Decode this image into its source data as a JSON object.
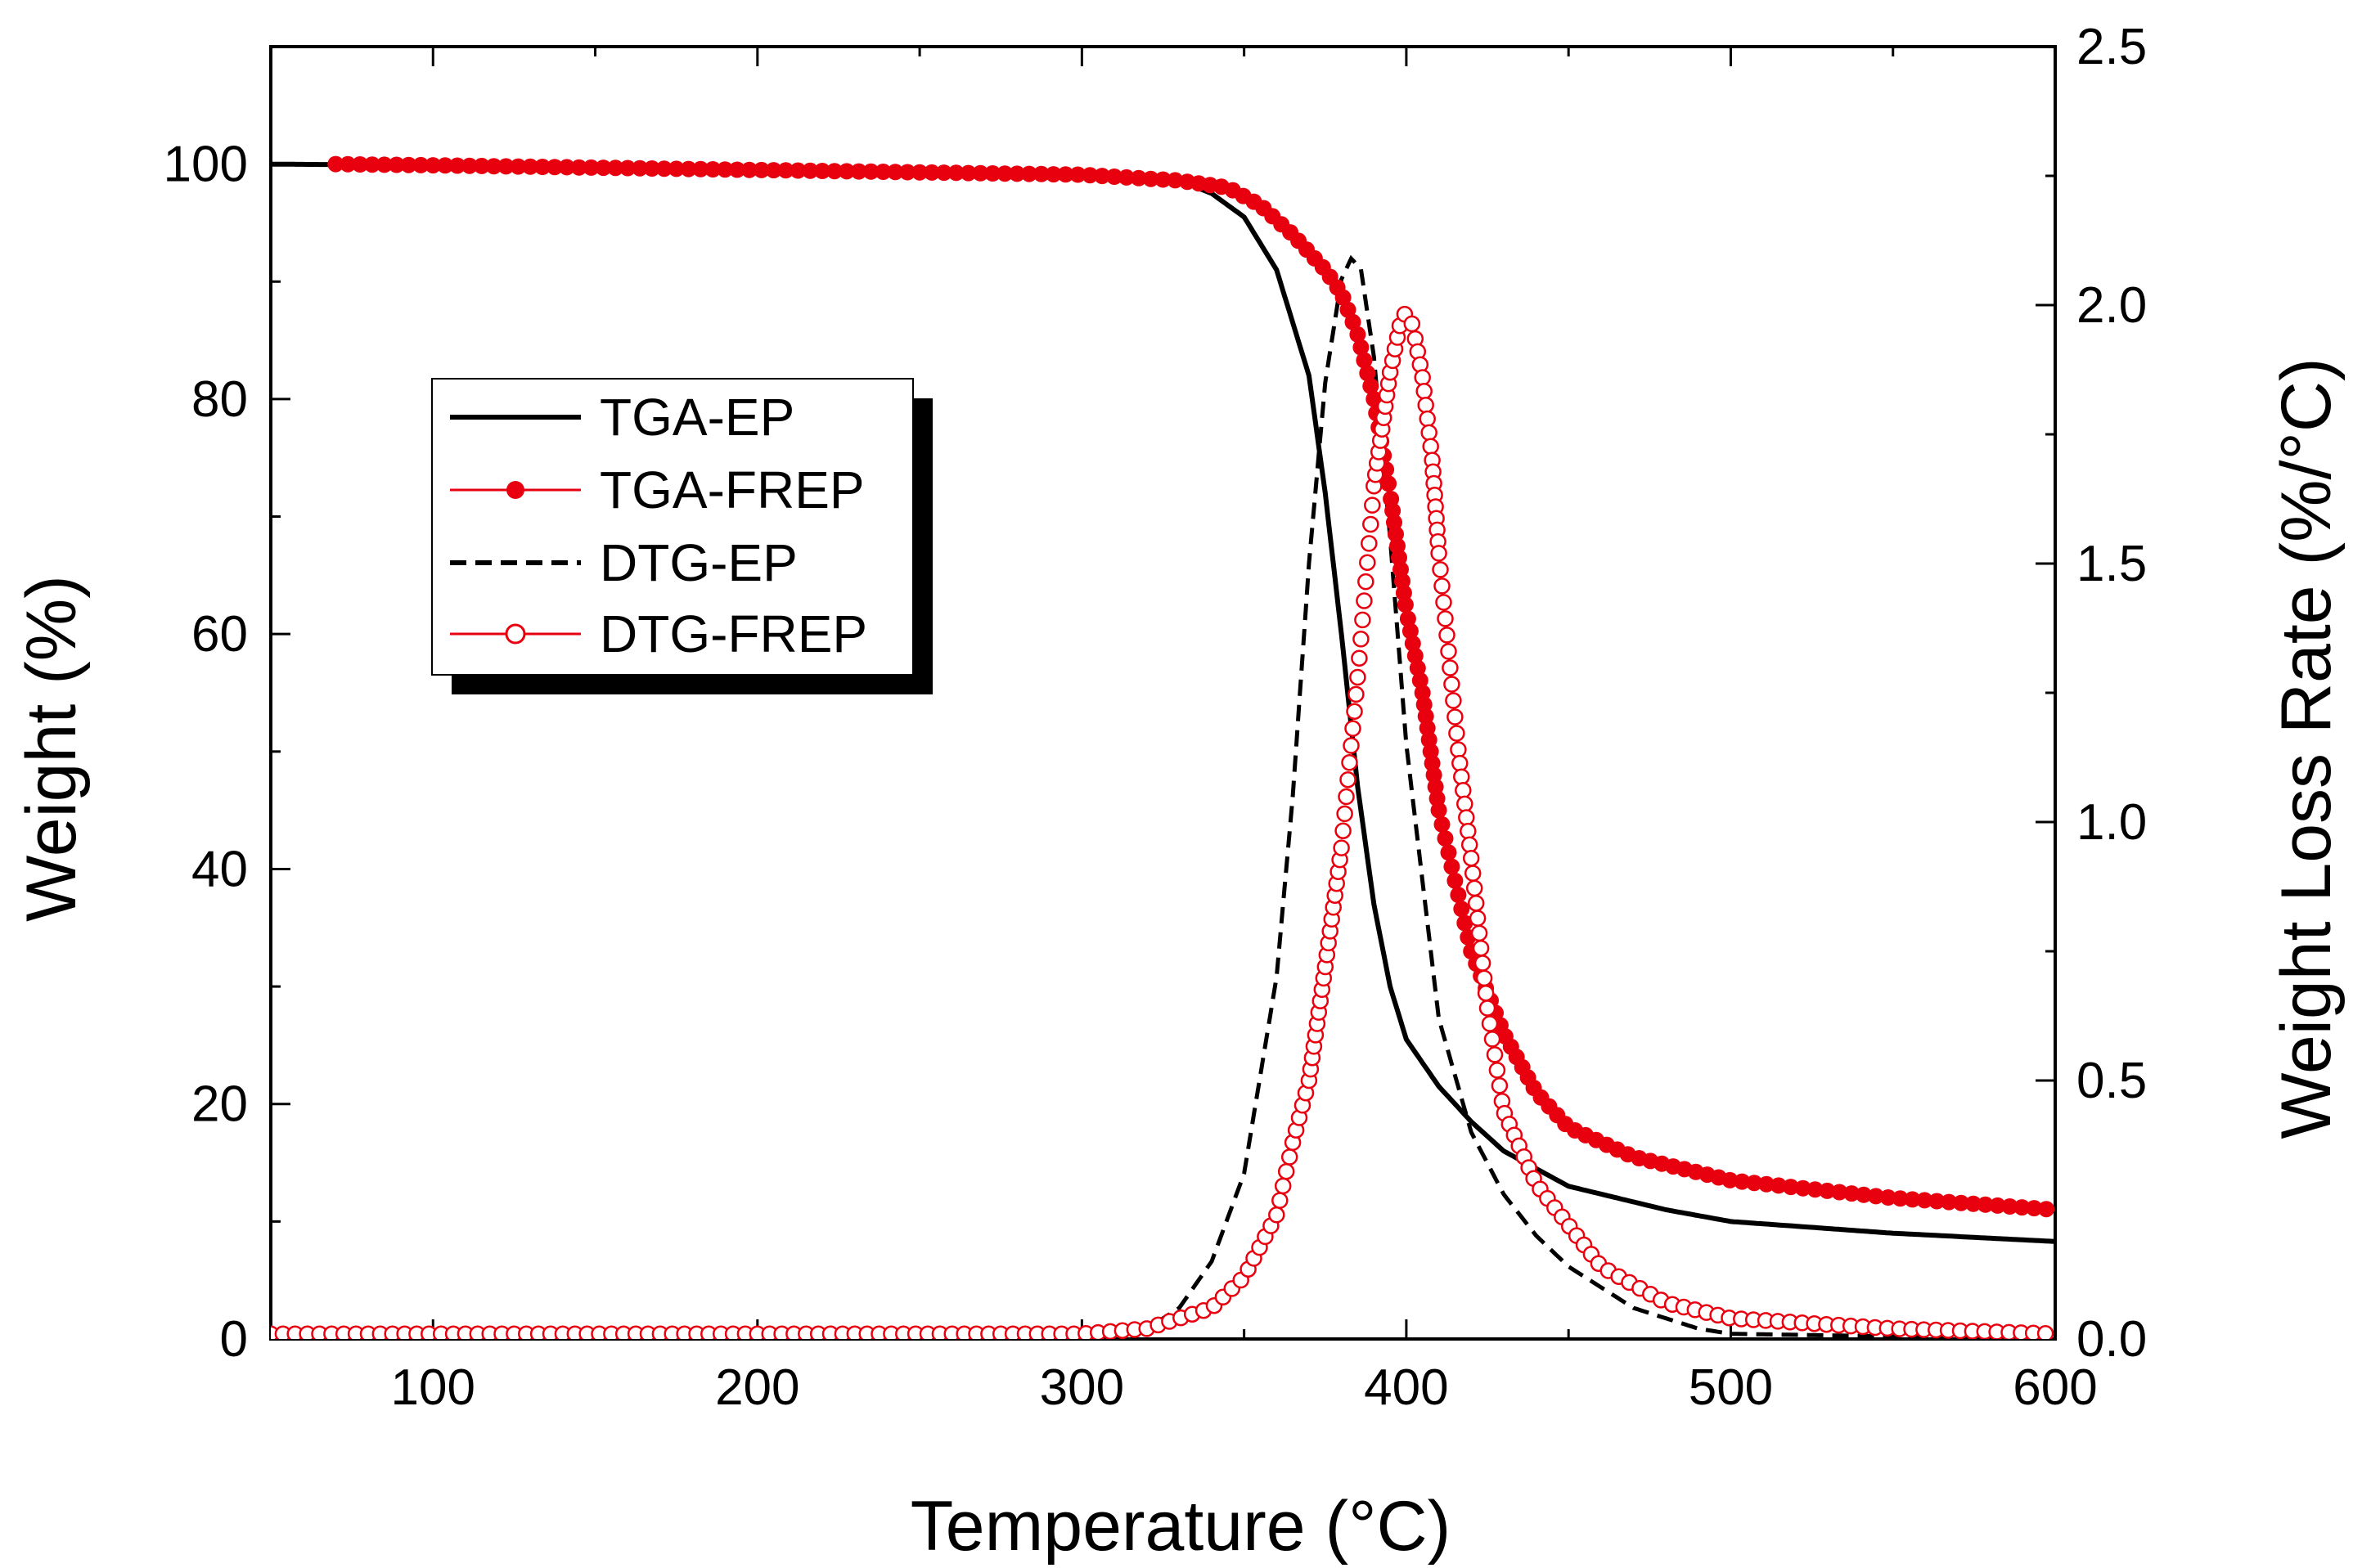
{
  "chart_data": {
    "type": "line",
    "title": "",
    "xlabel": "Temperature (°C)",
    "ylabel_left": "Weight (%)",
    "ylabel_right": "Weight Loss Rate (%/°C)",
    "xlim": [
      50,
      600
    ],
    "ylim_left": [
      0,
      110
    ],
    "ylim_right": [
      0,
      2.5
    ],
    "x_ticks": [
      "100",
      "200",
      "300",
      "400",
      "500",
      "600"
    ],
    "y_ticks_left": [
      "0",
      "20",
      "40",
      "60",
      "80",
      "100"
    ],
    "y_ticks_right": [
      "0.0",
      "0.5",
      "1.0",
      "1.5",
      "2.0",
      "2.5"
    ],
    "legend_position": "upper-left",
    "colors": {
      "ep": "#000000",
      "frep": "#e8000f"
    },
    "series": [
      {
        "name": "TGA-EP",
        "axis": "left",
        "style": "solid",
        "x": [
          50,
          100,
          200,
          300,
          330,
          340,
          350,
          360,
          370,
          375,
          380,
          385,
          390,
          395,
          400,
          410,
          420,
          430,
          450,
          480,
          500,
          550,
          600
        ],
        "y": [
          100,
          99.9,
          99.6,
          99.1,
          98.6,
          97.5,
          95.5,
          91,
          82,
          72,
          60,
          47,
          37,
          30,
          25.5,
          21.5,
          18.5,
          16,
          13,
          11,
          10,
          9,
          8.3
        ]
      },
      {
        "name": "TGA-FREP",
        "axis": "left",
        "style": "filled-markers",
        "x": [
          70,
          100,
          200,
          300,
          330,
          345,
          355,
          365,
          375,
          380,
          385,
          390,
          395,
          400,
          405,
          410,
          420,
          430,
          440,
          450,
          470,
          500,
          550,
          600
        ],
        "y": [
          100,
          99.9,
          99.5,
          99.1,
          98.6,
          98,
          96.5,
          94,
          91,
          89,
          85.5,
          80,
          72,
          62,
          55,
          45,
          33,
          26,
          21,
          18,
          15.5,
          13.5,
          12,
          11
        ]
      },
      {
        "name": "DTG-EP",
        "axis": "right",
        "style": "dashed",
        "x": [
          50,
          300,
          320,
          330,
          340,
          350,
          360,
          365,
          370,
          375,
          380,
          383,
          386,
          390,
          395,
          400,
          410,
          420,
          430,
          440,
          450,
          470,
          490,
          500,
          600
        ],
        "y": [
          0,
          0,
          0.02,
          0.06,
          0.15,
          0.32,
          0.7,
          1.05,
          1.5,
          1.85,
          2.05,
          2.09,
          2.07,
          1.9,
          1.55,
          1.15,
          0.62,
          0.4,
          0.28,
          0.2,
          0.14,
          0.06,
          0.02,
          0.01,
          0
        ]
      },
      {
        "name": "DTG-FREP",
        "axis": "right",
        "style": "open-markers",
        "x": [
          50,
          300,
          320,
          340,
          350,
          360,
          365,
          370,
          375,
          380,
          385,
          390,
          395,
          398,
          400,
          402,
          405,
          408,
          410,
          413,
          416,
          420,
          425,
          430,
          440,
          450,
          460,
          480,
          500,
          550,
          600
        ],
        "y": [
          0.01,
          0.01,
          0.02,
          0.06,
          0.12,
          0.24,
          0.38,
          0.5,
          0.72,
          0.95,
          1.28,
          1.65,
          1.87,
          1.96,
          1.99,
          1.96,
          1.86,
          1.7,
          1.52,
          1.33,
          1.14,
          0.93,
          0.64,
          0.44,
          0.3,
          0.22,
          0.14,
          0.07,
          0.04,
          0.02,
          0.01
        ]
      }
    ]
  }
}
